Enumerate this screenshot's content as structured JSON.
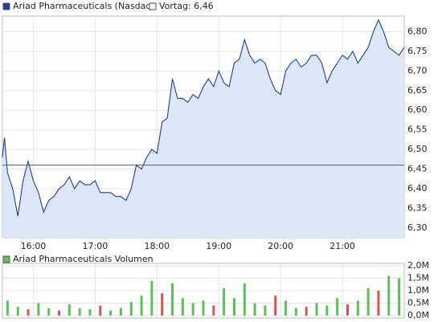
{
  "chart_data": [
    {
      "type": "line",
      "series": [
        {
          "name": "Ariad Pharmaceuticals (Nasdaq)",
          "color": "#1f3f8f",
          "fill": "#dce8f8",
          "values": [
            6.48,
            6.53,
            6.44,
            6.4,
            6.33,
            6.42,
            6.47,
            6.42,
            6.39,
            6.34,
            6.37,
            6.38,
            6.4,
            6.41,
            6.43,
            6.4,
            6.42,
            6.41,
            6.41,
            6.42,
            6.39,
            6.39,
            6.39,
            6.38,
            6.38,
            6.37,
            6.4,
            6.46,
            6.45,
            6.48,
            6.5,
            6.49,
            6.57,
            6.58,
            6.68,
            6.63,
            6.63,
            6.62,
            6.64,
            6.63,
            6.66,
            6.68,
            6.66,
            6.7,
            6.67,
            6.66,
            6.72,
            6.73,
            6.78,
            6.74,
            6.72,
            6.73,
            6.72,
            6.68,
            6.65,
            6.64,
            6.7,
            6.72,
            6.73,
            6.71,
            6.72,
            6.74,
            6.74,
            6.72,
            6.67,
            6.7,
            6.72,
            6.74,
            6.73,
            6.75,
            6.72,
            6.74,
            6.76,
            6.8,
            6.83,
            6.8,
            6.76,
            6.75,
            6.74,
            6.76
          ]
        }
      ],
      "x": [
        "15:30",
        "15:32",
        "15:35",
        "15:40",
        "15:45",
        "15:50",
        "15:55",
        "16:00",
        "16:05",
        "16:10",
        "16:15",
        "16:20",
        "16:25",
        "16:30",
        "16:35",
        "16:40",
        "16:45",
        "16:50",
        "16:55",
        "17:00",
        "17:05",
        "17:10",
        "17:15",
        "17:20",
        "17:25",
        "17:30",
        "17:35",
        "17:40",
        "17:45",
        "17:50",
        "17:55",
        "18:00",
        "18:05",
        "18:10",
        "18:15",
        "18:20",
        "18:25",
        "18:30",
        "18:35",
        "18:40",
        "18:45",
        "18:50",
        "18:55",
        "19:00",
        "19:05",
        "19:10",
        "19:15",
        "19:20",
        "19:25",
        "19:30",
        "19:35",
        "19:40",
        "19:45",
        "19:50",
        "19:55",
        "20:00",
        "20:05",
        "20:10",
        "20:15",
        "20:20",
        "20:25",
        "20:30",
        "20:35",
        "20:40",
        "20:45",
        "20:50",
        "20:55",
        "21:00",
        "21:05",
        "21:10",
        "21:15",
        "21:20",
        "21:25",
        "21:30",
        "21:35",
        "21:40",
        "21:45",
        "21:50",
        "21:55",
        "22:00"
      ],
      "reference": {
        "name": "Vortag: 6,46",
        "value": 6.46,
        "color": "#4a5a7a"
      },
      "xlim": [
        "15:30",
        "22:00"
      ],
      "xticks": [
        "16:00",
        "17:00",
        "18:00",
        "19:00",
        "20:00",
        "21:00"
      ],
      "ylim": [
        6.275,
        6.84
      ],
      "yticks": [
        {
          "value": 6.3,
          "label": "6,30"
        },
        {
          "value": 6.35,
          "label": "6,35"
        },
        {
          "value": 6.4,
          "label": "6,40"
        },
        {
          "value": 6.45,
          "label": "6,45"
        },
        {
          "value": 6.5,
          "label": "6,50"
        },
        {
          "value": 6.55,
          "label": "6,55"
        },
        {
          "value": 6.6,
          "label": "6,60"
        },
        {
          "value": 6.65,
          "label": "6,65"
        },
        {
          "value": 6.7,
          "label": "6,70"
        },
        {
          "value": 6.75,
          "label": "6,75"
        },
        {
          "value": 6.8,
          "label": "6,80"
        }
      ],
      "grid": true
    },
    {
      "type": "bar",
      "series": [
        {
          "name": "Ariad Pharmaceuticals Volumen",
          "color": "#5cbf5c",
          "values": [
            600000,
            350000,
            250000,
            500000,
            300000,
            200000,
            450000,
            300000,
            250000,
            400000,
            200000,
            300000,
            550000,
            800000,
            1400000,
            900000,
            1300000,
            700000,
            500000,
            600000,
            400000,
            1100000,
            700000,
            1300000,
            500000,
            400000,
            800000,
            600000,
            300000,
            350000,
            500000,
            400000,
            700000,
            450000,
            600000,
            1100000,
            1000000,
            1600000,
            1500000
          ]
        }
      ],
      "bar_colors": [
        "#5cbf5c",
        "#5cbf5c",
        "#d9534f",
        "#5cbf5c",
        "#5cbf5c",
        "#d9534f",
        "#5cbf5c",
        "#5cbf5c",
        "#5cbf5c",
        "#d9534f",
        "#5cbf5c",
        "#5cbf5c",
        "#5cbf5c",
        "#5cbf5c",
        "#5cbf5c",
        "#d9534f",
        "#5cbf5c",
        "#5cbf5c",
        "#5cbf5c",
        "#5cbf5c",
        "#d9534f",
        "#5cbf5c",
        "#5cbf5c",
        "#5cbf5c",
        "#5cbf5c",
        "#5cbf5c",
        "#d9534f",
        "#5cbf5c",
        "#5cbf5c",
        "#d9534f",
        "#5cbf5c",
        "#5cbf5c",
        "#5cbf5c",
        "#d9534f",
        "#5cbf5c",
        "#5cbf5c",
        "#d9534f",
        "#5cbf5c",
        "#5cbf5c"
      ],
      "x": [
        "15:35",
        "15:45",
        "15:55",
        "16:05",
        "16:15",
        "16:25",
        "16:35",
        "16:45",
        "16:55",
        "17:05",
        "17:15",
        "17:25",
        "17:35",
        "17:45",
        "17:55",
        "18:05",
        "18:15",
        "18:25",
        "18:35",
        "18:45",
        "18:55",
        "19:05",
        "19:15",
        "19:25",
        "19:35",
        "19:45",
        "19:55",
        "20:05",
        "20:15",
        "20:25",
        "20:35",
        "20:45",
        "20:55",
        "21:05",
        "21:15",
        "21:25",
        "21:35",
        "21:45",
        "21:55"
      ],
      "xlim": [
        "15:30",
        "22:00"
      ],
      "xticks": [
        "16:00",
        "17:00",
        "18:00",
        "19:00",
        "20:00",
        "21:00"
      ],
      "ylim": [
        -100000,
        2100000
      ],
      "yticks": [
        {
          "value": 0,
          "label": "0,0M"
        },
        {
          "value": 500000,
          "label": "0,5M"
        },
        {
          "value": 1000000,
          "label": "1,0M"
        },
        {
          "value": 1500000,
          "label": "1,5M"
        },
        {
          "value": 2000000,
          "label": "2,0M"
        }
      ],
      "grid": true
    }
  ]
}
